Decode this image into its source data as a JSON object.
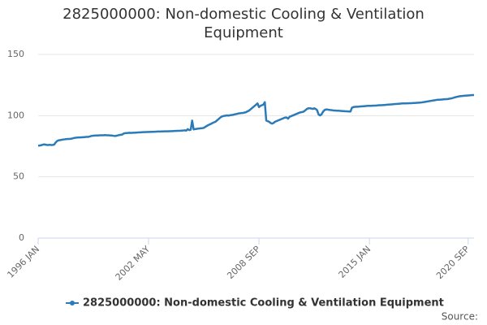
{
  "chart_data": {
    "type": "line",
    "title": "2825000000: Non-domestic Cooling & Ventilation Equipment",
    "source": "Source:",
    "categories": [
      "1996 JAN",
      null,
      null,
      null,
      null,
      null,
      null,
      null,
      null,
      null,
      null,
      null,
      null,
      null,
      null,
      null,
      null,
      null,
      null,
      null,
      null,
      null,
      null,
      null,
      null,
      null,
      null,
      null,
      null,
      null,
      null,
      null,
      null,
      null,
      null,
      null,
      null,
      null,
      null,
      null,
      null,
      null,
      null,
      null,
      null,
      null,
      null,
      null,
      null,
      null,
      null,
      null,
      null,
      null,
      null,
      null,
      null,
      null,
      null,
      null,
      null,
      null,
      null,
      null,
      null,
      null,
      null,
      null,
      null,
      null,
      null,
      null,
      null,
      null,
      null,
      null,
      "2002 MAY",
      null,
      null,
      null,
      null,
      null,
      null,
      null,
      null,
      null,
      null,
      null,
      null,
      null,
      null,
      null,
      null,
      null,
      null,
      null,
      null,
      null,
      null,
      null,
      null,
      null,
      null,
      null,
      null,
      null,
      null,
      null,
      null,
      null,
      null,
      null,
      null,
      null,
      null,
      null,
      null,
      null,
      null,
      null,
      null,
      null,
      null,
      null,
      null,
      null,
      null,
      null,
      null,
      null,
      null,
      null,
      null,
      null,
      null,
      null,
      null,
      null,
      null,
      null,
      null,
      null,
      null,
      null,
      null,
      null,
      null,
      null,
      null,
      null,
      null,
      null,
      "2008 SEP",
      null,
      null,
      null,
      null,
      null,
      null,
      null,
      null,
      null,
      null,
      null,
      null,
      null,
      null,
      null,
      null,
      null,
      null,
      null,
      null,
      null,
      null,
      null,
      null,
      null,
      null,
      null,
      null,
      null,
      null,
      null,
      null,
      null,
      null,
      null,
      null,
      null,
      null,
      null,
      null,
      null,
      null,
      null,
      null,
      null,
      null,
      null,
      null,
      null,
      null,
      null,
      null,
      null,
      null,
      null,
      null,
      null,
      null,
      null,
      null,
      null,
      null,
      null,
      null,
      null,
      null,
      null,
      null,
      null,
      null,
      null,
      null,
      null,
      null,
      null,
      "2015 JAN",
      null,
      null,
      null,
      null,
      null,
      null,
      null,
      null,
      null,
      null,
      null,
      null,
      null,
      null,
      null,
      null,
      null,
      null,
      null,
      null,
      null,
      null,
      null,
      null,
      null,
      null,
      null,
      null,
      null,
      null,
      null,
      null,
      null,
      null,
      null,
      null,
      null,
      null,
      null,
      null,
      null,
      null,
      null,
      null,
      null,
      null,
      null,
      null,
      null,
      null,
      null,
      null,
      null,
      null,
      null,
      null,
      null,
      null,
      null,
      null,
      null,
      null,
      null,
      null,
      null,
      null,
      null,
      "2020 SEP",
      null,
      null,
      null,
      null
    ],
    "series": [
      {
        "name": "2825000000: Non-domestic Cooling & Ventilation Equipment",
        "color": "#2b7bb9",
        "values": [
          75.5,
          75.6,
          75.8,
          76.2,
          76.5,
          76.3,
          76.1,
          76,
          76.2,
          76,
          76.1,
          76.3,
          78,
          79.2,
          79.8,
          80,
          80.2,
          80.5,
          80.6,
          80.8,
          80.9,
          81,
          81,
          81.2,
          81.5,
          81.8,
          82,
          82.1,
          82.2,
          82.2,
          82.3,
          82.4,
          82.5,
          82.6,
          82.6,
          82.8,
          83.2,
          83.5,
          83.6,
          83.7,
          83.8,
          83.8,
          83.9,
          84,
          84,
          84,
          84.1,
          84,
          84,
          83.9,
          83.8,
          83.7,
          83.5,
          83.4,
          83.6,
          83.9,
          84.2,
          84.4,
          84.6,
          85.5,
          85.7,
          85.8,
          85.9,
          86,
          85.9,
          86,
          86,
          86.1,
          86.2,
          86.3,
          86.4,
          86.4,
          86.5,
          86.5,
          86.6,
          86.6,
          86.7,
          86.7,
          86.8,
          86.8,
          86.9,
          86.9,
          87,
          87,
          87,
          87.1,
          87.1,
          87.2,
          87.2,
          87.2,
          87.3,
          87.3,
          87.4,
          87.4,
          87.5,
          87.5,
          87.6,
          87.6,
          87.7,
          87.8,
          87.9,
          88,
          87.8,
          89,
          88.2,
          88.5,
          96,
          88.8,
          89,
          89.2,
          89.4,
          89.5,
          89.7,
          89.8,
          90,
          90.8,
          91.5,
          92.2,
          92.8,
          93.3,
          94,
          94.5,
          95,
          96,
          97,
          98,
          99,
          99.5,
          99.8,
          100,
          100.2,
          100,
          100.3,
          100.5,
          100.6,
          101,
          101.2,
          101.5,
          101.8,
          102,
          102.1,
          102.2,
          102.5,
          102.8,
          103.5,
          104,
          105,
          106,
          107,
          108,
          109,
          110,
          107,
          108,
          108.5,
          109,
          111,
          96,
          95.5,
          95,
          94,
          93.5,
          94,
          95,
          95.5,
          96,
          96.5,
          97,
          97.5,
          98,
          98.5,
          98.5,
          97.5,
          99,
          99.5,
          100,
          100.5,
          101,
          101.5,
          102,
          102.5,
          102.8,
          103,
          103.5,
          104.5,
          105.5,
          106,
          106,
          105.8,
          105.5,
          106,
          105.5,
          104.5,
          101,
          100.2,
          101,
          103,
          104.5,
          105,
          105,
          104.8,
          104.6,
          104.5,
          104.3,
          104.2,
          104.1,
          104,
          104,
          103.9,
          103.8,
          103.7,
          103.6,
          103.5,
          103.5,
          103.4,
          103.4,
          106.5,
          107,
          107.2,
          107.3,
          107.3,
          107.4,
          107.5,
          107.6,
          107.7,
          107.8,
          107.9,
          108,
          108,
          108,
          108.1,
          108.2,
          108.2,
          108.3,
          108.4,
          108.5,
          108.5,
          108.6,
          108.7,
          108.8,
          108.9,
          109,
          109.1,
          109.2,
          109.3,
          109.4,
          109.5,
          109.6,
          109.7,
          109.8,
          109.9,
          110,
          110,
          110,
          110.1,
          110.1,
          110.2,
          110.2,
          110.3,
          110.3,
          110.4,
          110.5,
          110.6,
          110.7,
          110.8,
          111,
          111.2,
          111.4,
          111.6,
          111.8,
          112,
          112.2,
          112.4,
          112.6,
          112.8,
          113,
          113,
          113.1,
          113.2,
          113.3,
          113.4,
          113.5,
          113.6,
          113.8,
          114,
          114.3,
          114.6,
          115,
          115.3,
          115.6,
          115.8,
          116,
          116.1,
          116.2,
          116.3,
          116.4,
          116.5,
          116.6,
          116.7,
          116.8,
          116.8
        ]
      }
    ],
    "ylim": [
      0,
      150
    ],
    "yticks": [
      0,
      50,
      100,
      150
    ],
    "grid": true
  }
}
